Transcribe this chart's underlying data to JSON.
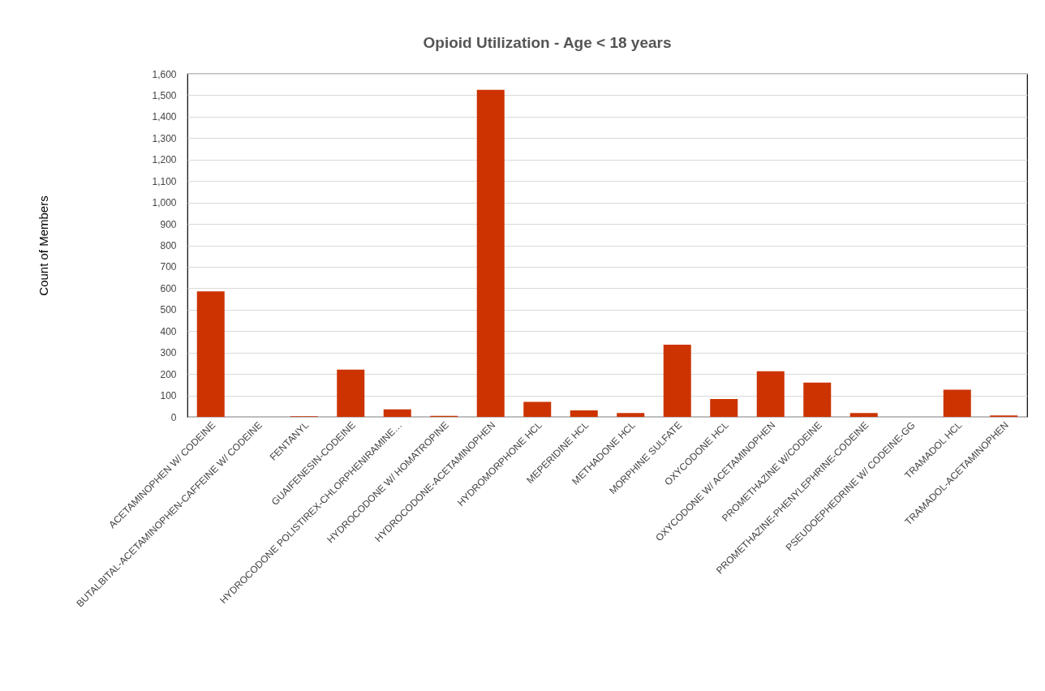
{
  "chart_data": {
    "type": "bar",
    "title": "Opioid Utilization - Age < 18 years",
    "ylabel": "Count of Members",
    "categories": [
      "ACETAMINOPHEN W/ CODEINE",
      "BUTALBITAL-ACETAMINOPHEN-CAFFEINE W/ CODEINE",
      "FENTANYL",
      "GUAIFENESIN-CODEINE",
      "HYDROCODONE POLISTIREX-CHLORPHENIRAMINE…",
      "HYDROCODONE W/ HOMATROPINE",
      "HYDROCODONE-ACETAMINOPHEN",
      "HYDROMORPHONE HCL",
      "MEPERIDINE HCL",
      "METHADONE HCL",
      "MORPHINE SULFATE",
      "OXYCODONE HCL",
      "OXYCODONE W/ ACETAMINOPHEN",
      "PROMETHAZINE W/CODEINE",
      "PROMETHAZINE-PHENYLEPHRINE-CODEINE",
      "PSEUDOEPHEDRINE W/ CODEINE-GG",
      "TRAMADOL HCL",
      "TRAMADOL-ACETAMINOPHEN"
    ],
    "values": [
      585,
      0,
      3,
      220,
      35,
      5,
      1525,
      70,
      30,
      18,
      337,
      83,
      213,
      160,
      18,
      0,
      127,
      7
    ],
    "color": "#cc3300",
    "ylim": [
      0,
      1600
    ],
    "yticks": [
      0,
      {
        "value": 100,
        "label": "100"
      },
      200,
      300,
      400,
      500,
      600,
      700,
      800,
      900,
      {
        "value": 1000,
        "label": "1,000"
      },
      {
        "value": 1100,
        "label": "1,100"
      },
      {
        "value": 1200,
        "label": "1,200"
      },
      {
        "value": 1300,
        "label": "1,300"
      },
      {
        "value": 1400,
        "label": "1,400"
      },
      {
        "value": 1500,
        "label": "1,500"
      },
      {
        "value": 1600,
        "label": "1,600"
      }
    ],
    "grid": "y"
  }
}
